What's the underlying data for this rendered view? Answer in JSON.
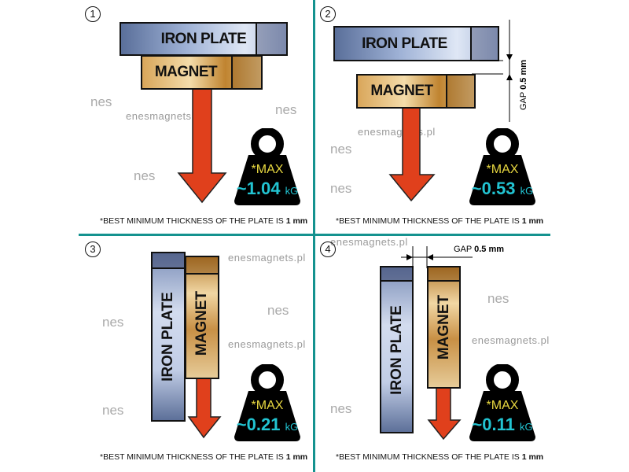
{
  "panels": [
    {
      "number": "1",
      "iron": "IRON PLATE",
      "magnet": "MAGNET",
      "max": "*MAX",
      "value": "~1.04",
      "unit": "kG",
      "note_prefix": "*BEST MINIMUM THICKNESS OF THE PLATE IS",
      "note_value": "1 mm"
    },
    {
      "number": "2",
      "iron": "IRON PLATE",
      "magnet": "MAGNET",
      "max": "*MAX",
      "value": "~0.53",
      "unit": "kG",
      "gap_label": "GAP",
      "gap_value": "0.5 mm",
      "note_prefix": "*BEST MINIMUM THICKNESS OF THE PLATE IS",
      "note_value": "1 mm"
    },
    {
      "number": "3",
      "iron": "IRON  PLATE",
      "magnet": "MAGNET",
      "max": "*MAX",
      "value": "~0.21",
      "unit": "kG",
      "note_prefix": "*BEST MINIMUM THICKNESS OF THE PLATE IS",
      "note_value": "1 mm"
    },
    {
      "number": "4",
      "iron": "IRON PLATE",
      "magnet": "MAGNET",
      "max": "*MAX",
      "value": "~0.11",
      "unit": "kG",
      "gap_label": "GAP",
      "gap_value": "0.5 mm",
      "note_prefix": "*BEST MINIMUM THICKNESS OF THE PLATE IS",
      "note_value": "1 mm"
    }
  ],
  "watermark": {
    "site": "enesmagnets.pl",
    "logo": "nes"
  },
  "colors": {
    "divider": "#14928f",
    "arrow": "#e0401c",
    "max_text": "#e8d840",
    "value_text": "#22c4d2"
  }
}
